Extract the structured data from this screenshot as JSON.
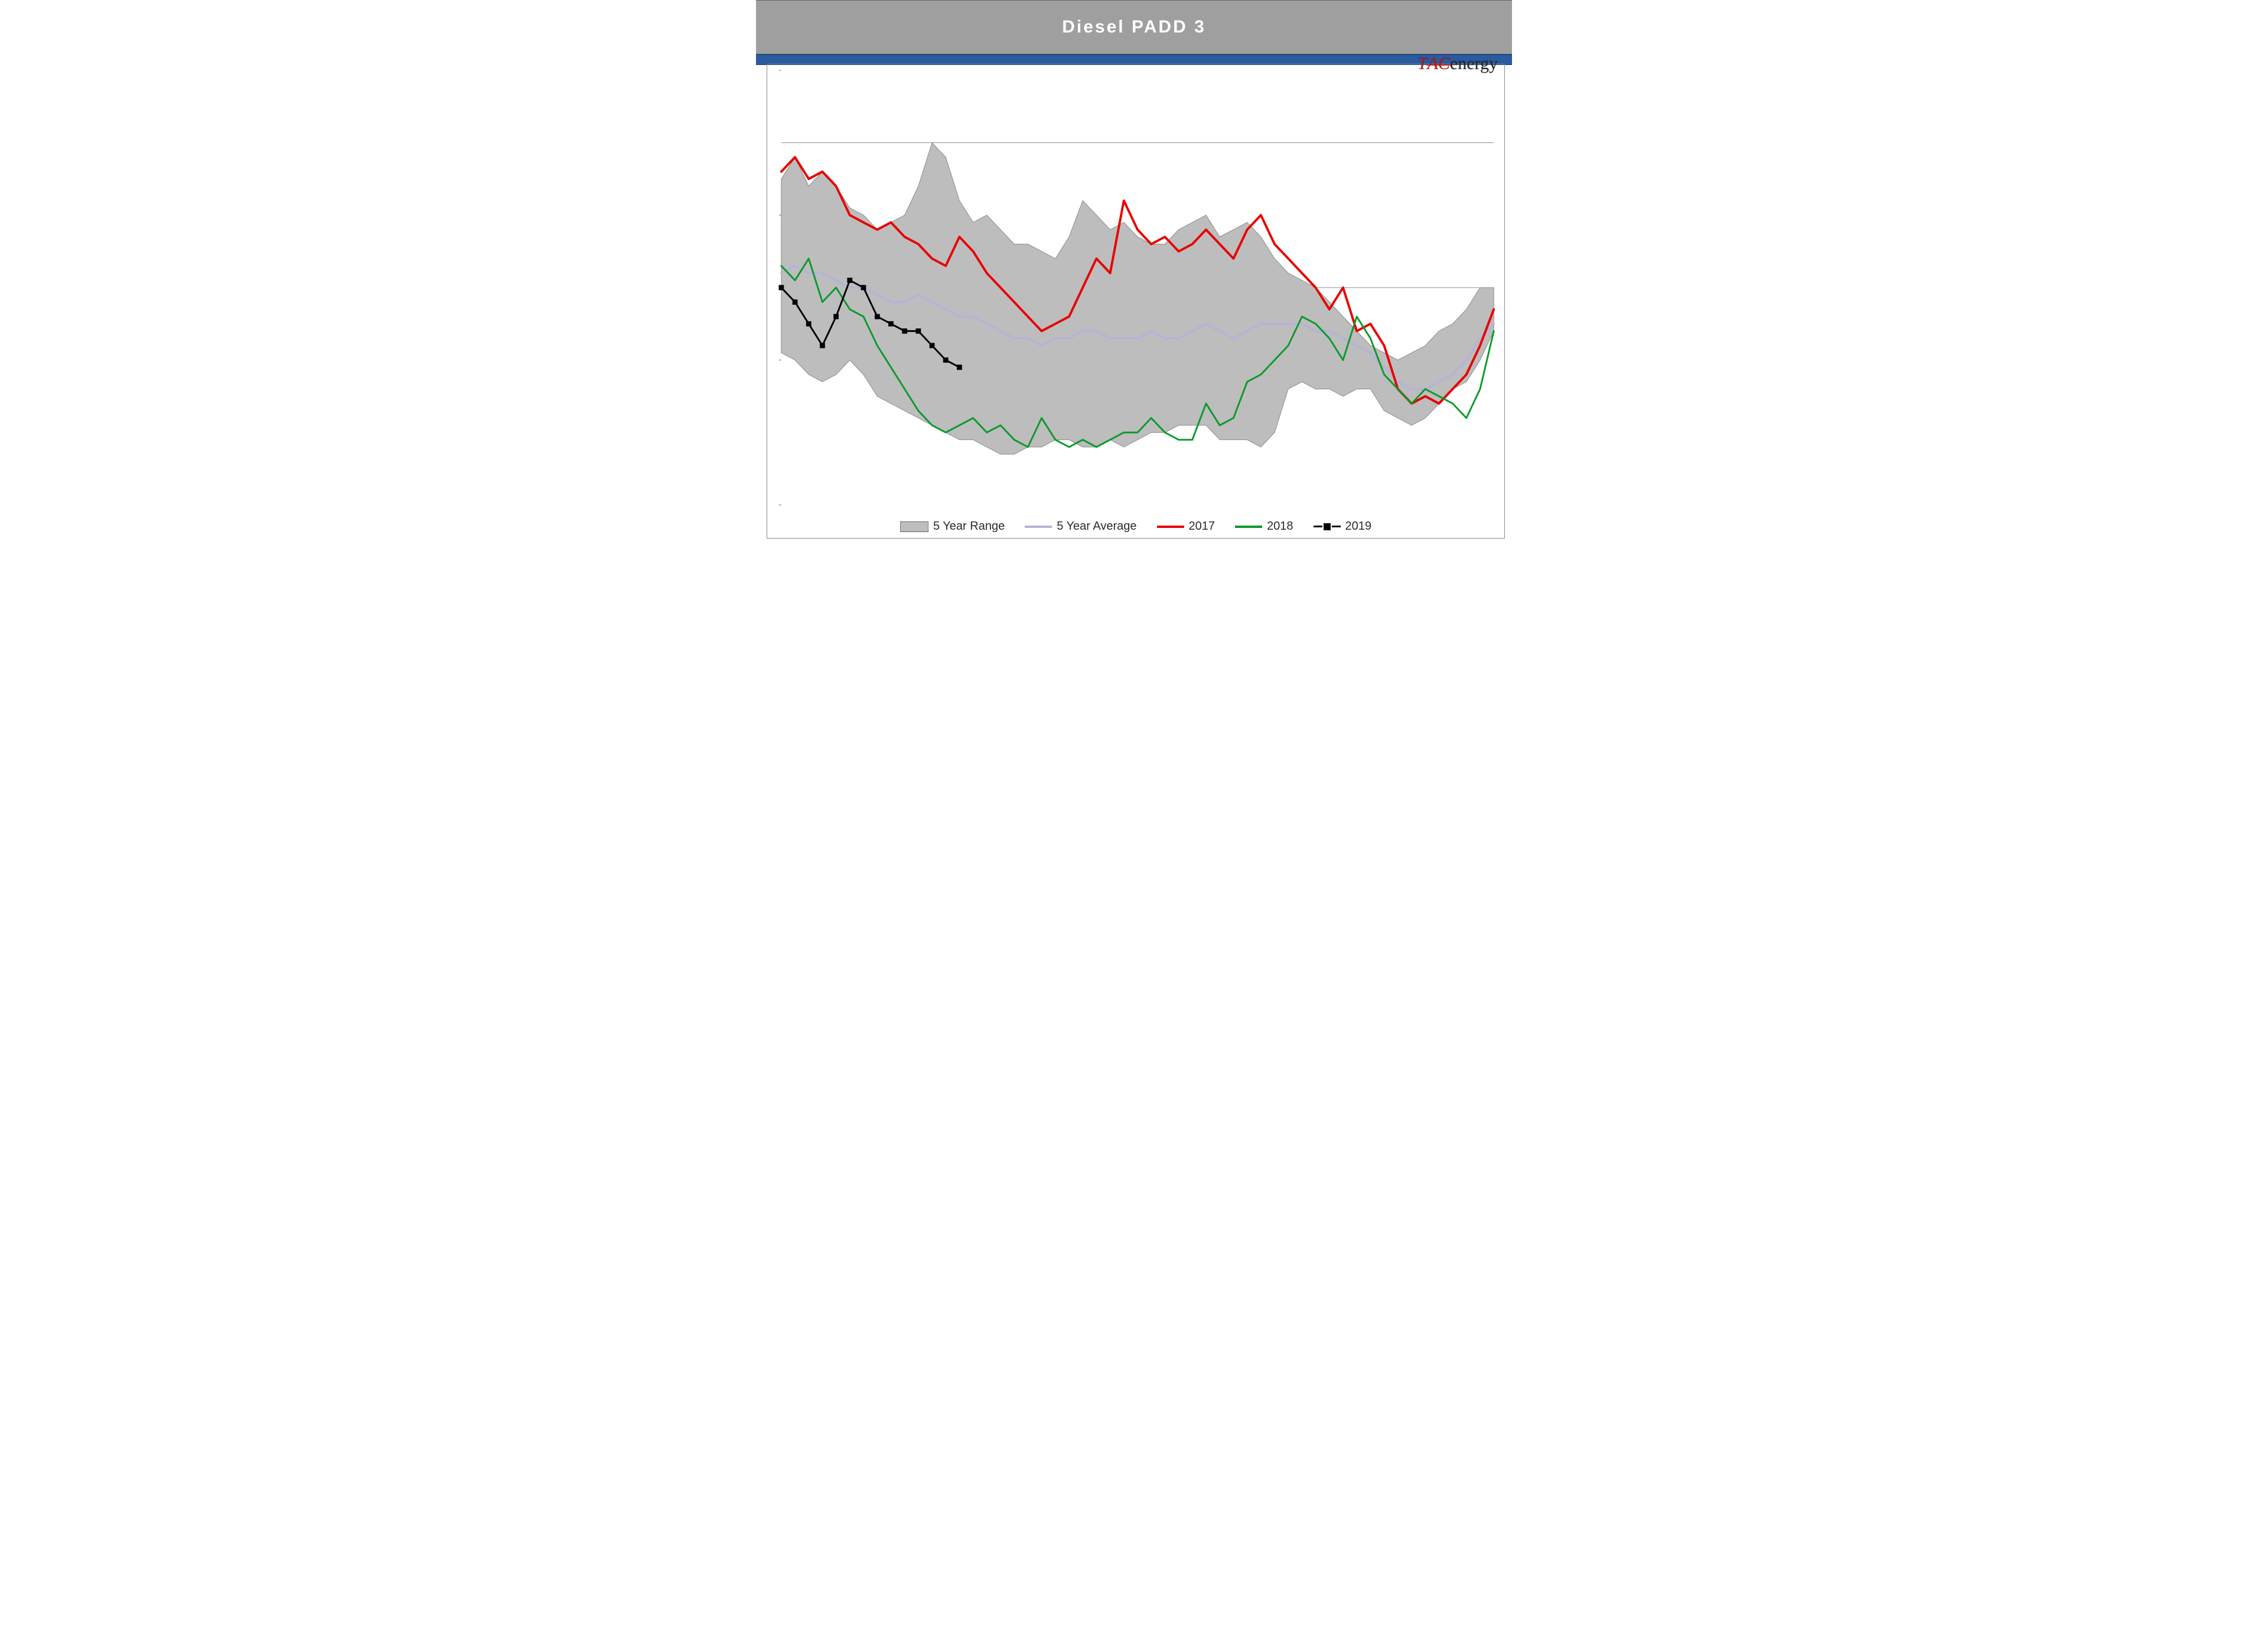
{
  "title": "Diesel  PADD  3",
  "logo": {
    "tac": "TAC",
    "rest": "energy"
  },
  "chart": {
    "type": "line_with_range_band",
    "aspect_w": 1250,
    "aspect_h": 760,
    "background_color": "#ffffff",
    "frame_color": "#8a8a8a",
    "grid": {
      "show_horizontal": true,
      "show_vertical": false,
      "h_positions_y_value": [
        40,
        50
      ],
      "color": "#8c8c8c",
      "width": 1
    },
    "x": {
      "n_weeks": 53,
      "lim": [
        1,
        53
      ],
      "show_tick_labels": false
    },
    "y": {
      "lim": [
        25,
        55
      ],
      "tick_step": 10,
      "show_tick_labels": false,
      "tick_mark_color": "#666666"
    },
    "range_band": {
      "label": "5 Year Range",
      "fill": "#bdbdbd",
      "stroke": "#8a8a8a",
      "upper": [
        47.5,
        49,
        47,
        48,
        47,
        45.5,
        45,
        44,
        44.5,
        45,
        47,
        50,
        49,
        46,
        44.5,
        45,
        44,
        43,
        43,
        42.5,
        42,
        43.5,
        46,
        45,
        44,
        44.5,
        43.5,
        43,
        43,
        44,
        44.5,
        45,
        43.5,
        44,
        44.5,
        43.5,
        42,
        41,
        40.5,
        40,
        39,
        38,
        37,
        36,
        35.5,
        35,
        35.5,
        36,
        37,
        37.5,
        38.5,
        40,
        40
      ],
      "lower": [
        35.5,
        35,
        34,
        33.5,
        34,
        35,
        34,
        32.5,
        32,
        31.5,
        31,
        30.5,
        30,
        29.5,
        29.5,
        29,
        28.5,
        28.5,
        29,
        29,
        29.5,
        29.5,
        29,
        29,
        29.5,
        29,
        29.5,
        30,
        30,
        30.5,
        30.5,
        30.5,
        29.5,
        29.5,
        29.5,
        29,
        30,
        33,
        33.5,
        33,
        33,
        32.5,
        33,
        33,
        31.5,
        31,
        30.5,
        31,
        32,
        33,
        33.5,
        35,
        37
      ]
    },
    "avg": {
      "label": "5 Year Average",
      "color": "#b6b3d6",
      "width": 4,
      "y": [
        41,
        41.5,
        41,
        41,
        40.5,
        40,
        40,
        39.5,
        39,
        39,
        39.5,
        39,
        38.5,
        38,
        38,
        37.5,
        37,
        36.5,
        36.5,
        36,
        36.5,
        36.5,
        37,
        37,
        36.5,
        36.5,
        36.5,
        37,
        36.5,
        36.5,
        37,
        37.5,
        37,
        36.5,
        37,
        37.5,
        37.5,
        37.5,
        37.5,
        37,
        37,
        36.5,
        36,
        35.5,
        34.5,
        33.5,
        33,
        33,
        33.5,
        34,
        35,
        36.5,
        37.5
      ]
    },
    "s2017": {
      "label": "2017",
      "color": "#e80000",
      "width": 4,
      "y": [
        48,
        49,
        47.5,
        48,
        47,
        45,
        44.5,
        44,
        44.5,
        43.5,
        43,
        42,
        41.5,
        43.5,
        42.5,
        41,
        40,
        39,
        38,
        37,
        37.5,
        38,
        40,
        42,
        41,
        46,
        44,
        43,
        43.5,
        42.5,
        43,
        44,
        43,
        42,
        44,
        45,
        43,
        42,
        41,
        40,
        38.5,
        40,
        37,
        37.5,
        36,
        33,
        32,
        32.5,
        32,
        33,
        34,
        36,
        38.5
      ]
    },
    "s2018": {
      "label": "2018",
      "color": "#0a9a2b",
      "width": 3,
      "y": [
        41.5,
        40.5,
        42,
        39,
        40,
        38.5,
        38,
        36,
        34.5,
        33,
        31.5,
        30.5,
        30,
        30.5,
        31,
        30,
        30.5,
        29.5,
        29,
        31,
        29.5,
        29,
        29.5,
        29,
        29.5,
        30,
        30,
        31,
        30,
        29.5,
        29.5,
        32,
        30.5,
        31,
        33.5,
        34,
        35,
        36,
        38,
        37.5,
        36.5,
        35,
        38,
        36.5,
        34,
        33,
        32,
        33,
        32.5,
        32,
        31,
        33,
        37
      ]
    },
    "s2019": {
      "label": "2019",
      "color": "#000000",
      "width": 3,
      "marker": "square",
      "marker_size": 8,
      "y": [
        40,
        39,
        37.5,
        36,
        38,
        40.5,
        40,
        38,
        37.5,
        37,
        37,
        36,
        35,
        34.5
      ]
    },
    "legend": {
      "position": "bottom-center",
      "font_size": 20,
      "text_color": "#2b2b2b",
      "items": [
        {
          "key": "range_band",
          "label": "5 Year Range"
        },
        {
          "key": "avg",
          "label": "5 Year Average"
        },
        {
          "key": "s2017",
          "label": "2017"
        },
        {
          "key": "s2018",
          "label": "2018"
        },
        {
          "key": "s2019",
          "label": "2019"
        }
      ]
    }
  }
}
